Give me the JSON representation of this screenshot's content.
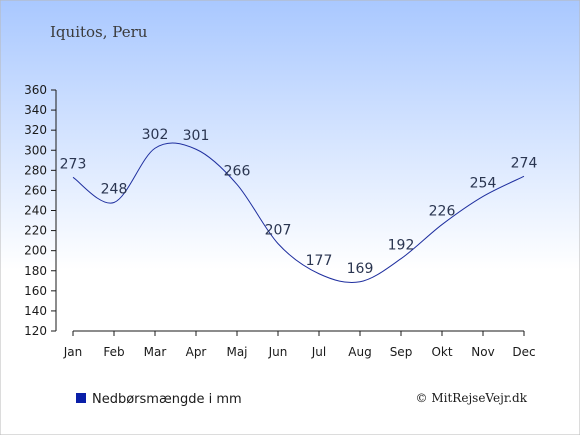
{
  "header": {
    "location": "Iquitos, Peru"
  },
  "legend": {
    "label": "Nedbørsmængde i mm",
    "swatch_color": "#0a1fa8"
  },
  "credit": "© MitRejseVejr.dk",
  "colors": {
    "line": "#1f2f9f",
    "bg_top": "#a9c8ff",
    "bg_bottom": "#ffffff"
  },
  "chart_data": {
    "type": "line",
    "categories": [
      "Jan",
      "Feb",
      "Mar",
      "Apr",
      "Maj",
      "Jun",
      "Jul",
      "Aug",
      "Sep",
      "Okt",
      "Nov",
      "Dec"
    ],
    "series": [
      {
        "name": "Nedbørsmængde i mm",
        "values": [
          273,
          248,
          302,
          301,
          266,
          207,
          177,
          169,
          192,
          226,
          254,
          274
        ]
      }
    ],
    "ylim": [
      120,
      360
    ],
    "yticks": [
      120,
      140,
      160,
      180,
      200,
      220,
      240,
      260,
      280,
      300,
      320,
      340,
      360
    ],
    "grid": false,
    "legend_position": "bottom-left"
  }
}
